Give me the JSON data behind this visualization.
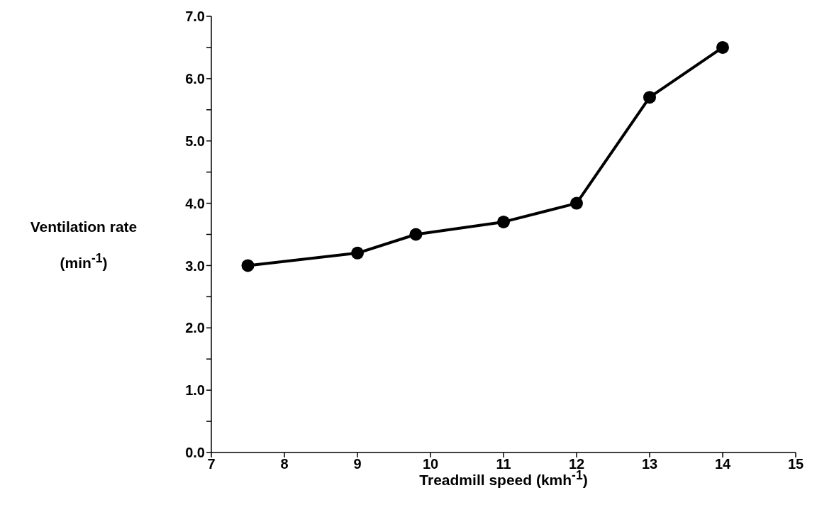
{
  "chart_data": {
    "type": "line",
    "xlabel": "Treadmill speed (kmh$^{-1}$)",
    "ylabel": "Ventilation rate (min$^{-1}$)",
    "x": [
      7.5,
      9,
      9.8,
      11,
      12,
      13,
      14
    ],
    "series": [
      {
        "color": "#000000",
        "values": [
          3.0,
          3.2,
          3.5,
          3.7,
          4.0,
          5.7,
          6.5
        ]
      }
    ],
    "xlim": [
      7,
      15
    ],
    "xticks": [
      7,
      8,
      9,
      10,
      11,
      12,
      13,
      14,
      15
    ],
    "ylim": [
      0,
      7
    ],
    "yticks": [
      {
        "value": 0,
        "label": "0.0"
      },
      {
        "value": 0.5,
        "label": null
      },
      {
        "value": 1,
        "label": "1.0"
      },
      {
        "value": 1.5,
        "label": null
      },
      {
        "value": 2,
        "label": "2.0"
      },
      {
        "value": 2.5,
        "label": null
      },
      {
        "value": 3,
        "label": "3.0"
      },
      {
        "value": 3.5,
        "label": null
      },
      {
        "value": 4,
        "label": "4.0"
      },
      {
        "value": 4.5,
        "label": null
      },
      {
        "value": 5,
        "label": "5.0"
      },
      {
        "value": 5.5,
        "label": null
      },
      {
        "value": 6,
        "label": "6.0"
      },
      {
        "value": 6.5,
        "label": null
      },
      {
        "value": 7,
        "label": "7.0"
      }
    ],
    "grid": false,
    "marker": "circle",
    "line_style": "solid"
  }
}
